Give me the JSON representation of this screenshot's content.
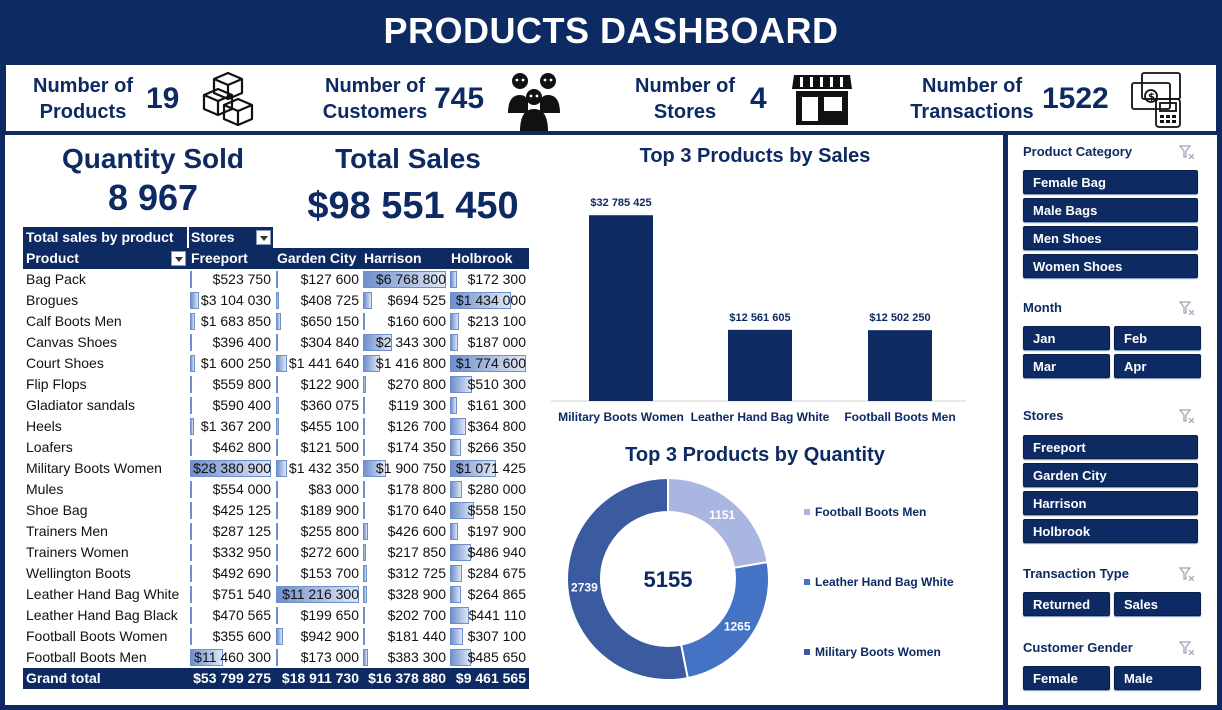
{
  "header": {
    "title": "PRODUCTS DASHBOARD"
  },
  "kpis": {
    "products": {
      "label1": "Number of",
      "label2": "Products",
      "value": "19",
      "icon": "boxes-icon"
    },
    "customers": {
      "label1": "Number of",
      "label2": "Customers",
      "value": "745",
      "icon": "customers-icon"
    },
    "stores": {
      "label1": "Number of",
      "label2": "Stores",
      "value": "4",
      "icon": "storefront-icon"
    },
    "transactions": {
      "label1": "Number of",
      "label2": "Transactions",
      "value": "1522",
      "icon": "payment-icon"
    }
  },
  "summary": {
    "quantity_label": "Quantity Sold",
    "quantity_value": "8 967",
    "sales_label": "Total Sales",
    "sales_value": "$98 551 450"
  },
  "pivot": {
    "corner_label": "Total sales by product",
    "col_field": "Stores",
    "row_field": "Product",
    "stores": [
      "Freeport",
      "Garden City",
      "Harrison",
      "Holbrook"
    ],
    "rows": [
      {
        "product": "Bag Pack",
        "values": [
          "$523 750",
          "$127 600",
          "$6 768 800",
          "$172 300"
        ],
        "nums": [
          523750,
          127600,
          6768800,
          172300
        ]
      },
      {
        "product": "Brogues",
        "values": [
          "$3 104 030",
          "$408 725",
          "$694 525",
          "$1 434 000"
        ],
        "nums": [
          3104030,
          408725,
          694525,
          1434000
        ]
      },
      {
        "product": "Calf Boots Men",
        "values": [
          "$1 683 850",
          "$650 150",
          "$160 600",
          "$213 100"
        ],
        "nums": [
          1683850,
          650150,
          160600,
          213100
        ]
      },
      {
        "product": "Canvas Shoes",
        "values": [
          "$396 400",
          "$304 840",
          "$2 343 300",
          "$187 000"
        ],
        "nums": [
          396400,
          304840,
          2343300,
          187000
        ]
      },
      {
        "product": "Court Shoes",
        "values": [
          "$1 600 250",
          "$1 441 640",
          "$1 416 800",
          "$1 774 600"
        ],
        "nums": [
          1600250,
          1441640,
          1416800,
          1774600
        ]
      },
      {
        "product": "Flip Flops",
        "values": [
          "$559 800",
          "$122 900",
          "$270 800",
          "$510 300"
        ],
        "nums": [
          559800,
          122900,
          270800,
          510300
        ]
      },
      {
        "product": "Gladiator sandals",
        "values": [
          "$590 400",
          "$360 075",
          "$119 300",
          "$161 300"
        ],
        "nums": [
          590400,
          360075,
          119300,
          161300
        ]
      },
      {
        "product": "Heels",
        "values": [
          "$1 367 200",
          "$455 100",
          "$126 700",
          "$364 800"
        ],
        "nums": [
          1367200,
          455100,
          126700,
          364800
        ]
      },
      {
        "product": "Loafers",
        "values": [
          "$462 800",
          "$121 500",
          "$174 350",
          "$266 350"
        ],
        "nums": [
          462800,
          121500,
          174350,
          266350
        ]
      },
      {
        "product": "Military Boots Women",
        "values": [
          "$28 380 900",
          "$1 432 350",
          "$1 900 750",
          "$1 071 425"
        ],
        "nums": [
          28380900,
          1432350,
          1900750,
          1071425
        ]
      },
      {
        "product": "Mules",
        "values": [
          "$554 000",
          "$83 000",
          "$178 800",
          "$280 000"
        ],
        "nums": [
          554000,
          83000,
          178800,
          280000
        ]
      },
      {
        "product": "Shoe Bag",
        "values": [
          "$425 125",
          "$189 900",
          "$170 640",
          "$558 150"
        ],
        "nums": [
          425125,
          189900,
          170640,
          558150
        ]
      },
      {
        "product": "Trainers Men",
        "values": [
          "$287 125",
          "$255 800",
          "$426 600",
          "$197 900"
        ],
        "nums": [
          287125,
          255800,
          426600,
          197900
        ]
      },
      {
        "product": "Trainers Women",
        "values": [
          "$332 950",
          "$272 600",
          "$217 850",
          "$486 940"
        ],
        "nums": [
          332950,
          272600,
          217850,
          486940
        ]
      },
      {
        "product": "Wellington Boots",
        "values": [
          "$492 690",
          "$153 700",
          "$312 725",
          "$284 675"
        ],
        "nums": [
          492690,
          153700,
          312725,
          284675
        ]
      },
      {
        "product": "Leather Hand Bag White",
        "values": [
          "$751 540",
          "$11 216 300",
          "$328 900",
          "$264 865"
        ],
        "nums": [
          751540,
          11216300,
          328900,
          264865
        ]
      },
      {
        "product": "Leather Hand Bag Black",
        "values": [
          "$470 565",
          "$199 650",
          "$202 700",
          "$441 110"
        ],
        "nums": [
          470565,
          199650,
          202700,
          441110
        ]
      },
      {
        "product": "Football Boots Women",
        "values": [
          "$355 600",
          "$942 900",
          "$181 440",
          "$307 100"
        ],
        "nums": [
          355600,
          942900,
          181440,
          307100
        ]
      },
      {
        "product": "Football Boots Men",
        "values": [
          "$11 460 300",
          "$173 000",
          "$383 300",
          "$485 650"
        ],
        "nums": [
          11460300,
          173000,
          383300,
          485650
        ]
      }
    ],
    "grand_total_label": "Grand total",
    "grand_totals": [
      "$53 799 275",
      "$18 911 730",
      "$16 378 880",
      "$9 461 565"
    ]
  },
  "chart_data": [
    {
      "type": "bar",
      "title": "Top 3 Products by Sales",
      "categories": [
        "Military Boots Women",
        "Leather Hand Bag White",
        "Football Boots Men"
      ],
      "values": [
        32785425,
        12561605,
        12502250
      ],
      "labels": [
        "$32 785 425",
        "$12 561 605",
        "$12 502 250"
      ],
      "ylim": [
        0,
        36000000
      ],
      "color": "#0d2a63"
    },
    {
      "type": "pie",
      "title": "Top 3 Products by Quantity",
      "center_label": "5155",
      "categories": [
        "Football Boots Men",
        "Leather Hand Bag White",
        "Military Boots Women"
      ],
      "values": [
        1151,
        1265,
        2739
      ],
      "colors": [
        "#a9b6df",
        "#4472c4",
        "#3a5ba0"
      ],
      "legend_placement": "right"
    }
  ],
  "slicers": {
    "category": {
      "title": "Product Category",
      "items": [
        "Female Bag",
        "Male Bags",
        "Men Shoes",
        "Women Shoes"
      ]
    },
    "month": {
      "title": "Month",
      "items": [
        "Jan",
        "Feb",
        "Mar",
        "Apr"
      ]
    },
    "stores": {
      "title": "Stores",
      "items": [
        "Freeport",
        "Garden City",
        "Harrison",
        "Holbrook"
      ]
    },
    "transaction": {
      "title": "Transaction Type",
      "items": [
        "Returned",
        "Sales"
      ]
    },
    "gender": {
      "title": "Customer Gender",
      "items": [
        "Female",
        "Male"
      ]
    }
  }
}
